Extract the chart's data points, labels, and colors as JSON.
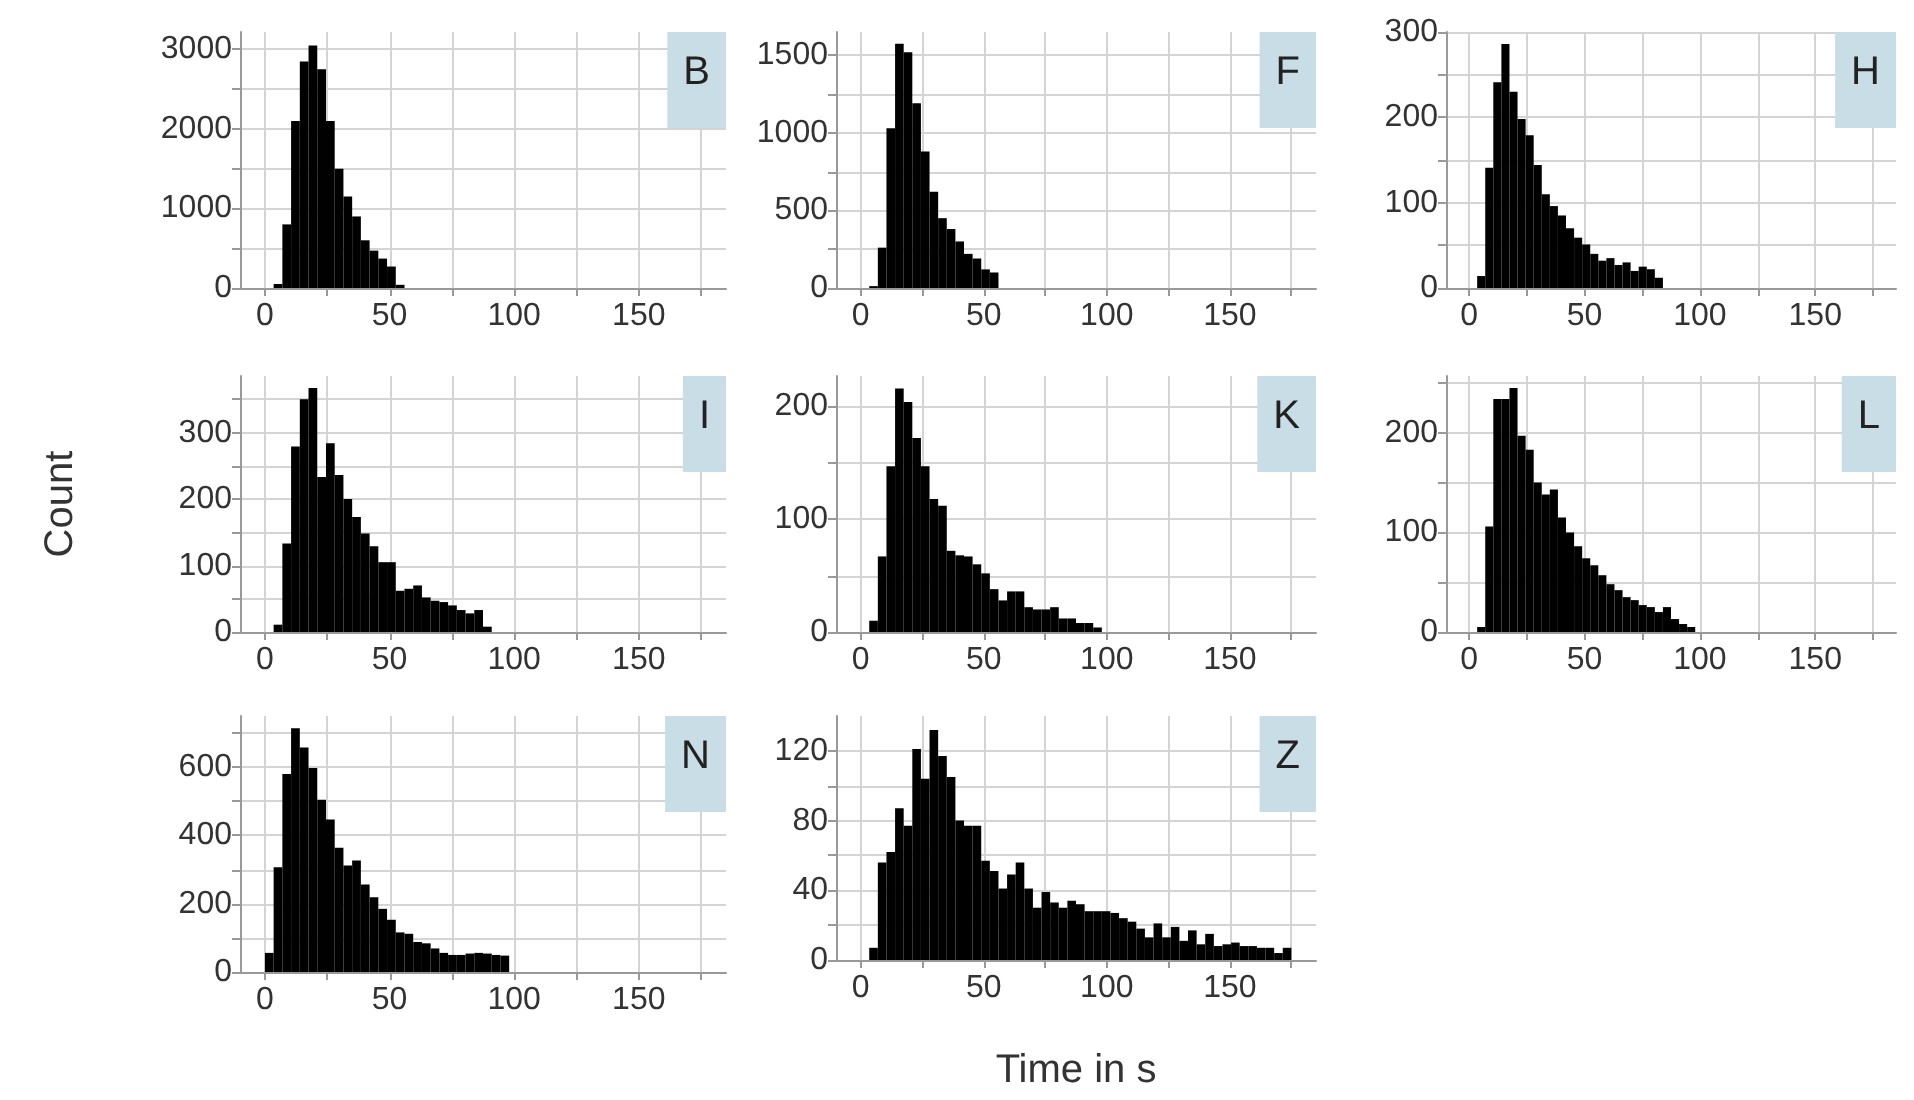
{
  "chart_data": [
    {
      "type": "histogram",
      "title": "B",
      "color": "#000000",
      "grid": true,
      "bins": [
        3.5,
        7,
        10.5,
        14,
        17.5,
        21,
        24.5,
        28,
        31.5,
        35,
        38.5,
        42,
        45.5,
        49,
        52.5,
        56
      ],
      "values": [
        50,
        800,
        2100,
        2850,
        3050,
        2750,
        2100,
        1500,
        1150,
        900,
        600,
        470,
        370,
        270,
        40
      ],
      "xlim": [
        -10,
        185
      ],
      "xticks": [
        0,
        {
          "value": 25,
          "label": null
        },
        50,
        {
          "value": 75,
          "label": null
        },
        100,
        {
          "value": 125,
          "label": null
        },
        150,
        {
          "value": 175,
          "label": null
        }
      ],
      "ylim": [
        0,
        3220
      ],
      "yticks": [
        0,
        {
          "value": 500,
          "label": null
        },
        1000,
        {
          "value": 1500,
          "label": null
        },
        2000,
        {
          "value": 2500,
          "label": null
        },
        3000
      ]
    },
    {
      "type": "histogram",
      "title": "F",
      "color": "#000000",
      "grid": true,
      "bins": [
        3.5,
        7,
        10.5,
        14,
        17.5,
        21,
        24.5,
        28,
        31.5,
        35,
        38.5,
        42,
        45.5,
        49,
        52.5,
        56
      ],
      "values": [
        12,
        260,
        1030,
        1575,
        1520,
        1190,
        880,
        620,
        450,
        380,
        300,
        220,
        190,
        120,
        100
      ],
      "xlim": [
        -10,
        185
      ],
      "xticks": [
        0,
        {
          "value": 25,
          "label": null
        },
        50,
        {
          "value": 75,
          "label": null
        },
        100,
        {
          "value": 125,
          "label": null
        },
        150,
        {
          "value": 175,
          "label": null
        }
      ],
      "ylim": [
        0,
        1650
      ],
      "yticks": [
        0,
        {
          "value": 250,
          "label": null
        },
        500,
        {
          "value": 750,
          "label": null
        },
        1000,
        {
          "value": 1250,
          "label": null
        },
        1500
      ]
    },
    {
      "type": "histogram",
      "title": "H",
      "color": "#000000",
      "grid": true,
      "bins": [
        3.5,
        7,
        10.5,
        14,
        17.5,
        21,
        24.5,
        28,
        31.5,
        35,
        38.5,
        42,
        45.5,
        49,
        52.5,
        56,
        59.5,
        63,
        66.5,
        70,
        73.5,
        77,
        80.5,
        84
      ],
      "values": [
        14,
        141,
        241,
        286,
        230,
        198,
        179,
        144,
        110,
        96,
        85,
        70,
        59,
        51,
        40,
        32,
        35,
        27,
        30,
        20,
        25,
        22,
        12
      ],
      "xlim": [
        -10,
        185
      ],
      "xticks": [
        0,
        {
          "value": 25,
          "label": null
        },
        50,
        {
          "value": 75,
          "label": null
        },
        100,
        {
          "value": 125,
          "label": null
        },
        150,
        {
          "value": 175,
          "label": null
        }
      ],
      "ylim": [
        0,
        300
      ],
      "yticks": [
        0,
        {
          "value": 50,
          "label": null
        },
        100,
        {
          "value": 150,
          "label": null
        },
        200,
        {
          "value": 250,
          "label": null
        },
        300
      ]
    },
    {
      "type": "histogram",
      "title": "I",
      "ylabel": "Count",
      "color": "#000000",
      "grid": true,
      "bins": [
        3.5,
        7,
        10.5,
        14,
        17.5,
        21,
        24.5,
        28,
        31.5,
        35,
        38.5,
        42,
        45.5,
        49,
        52.5,
        56,
        59.5,
        63,
        66.5,
        70,
        73.5,
        77,
        80.5,
        84,
        87.5,
        91
      ],
      "values": [
        11,
        133,
        279,
        350,
        367,
        233,
        284,
        236,
        200,
        173,
        148,
        129,
        105,
        105,
        62,
        65,
        70,
        52,
        47,
        45,
        40,
        33,
        28,
        33,
        8
      ],
      "xlim": [
        -10,
        185
      ],
      "xticks": [
        0,
        {
          "value": 25,
          "label": null
        },
        50,
        {
          "value": 75,
          "label": null
        },
        100,
        {
          "value": 125,
          "label": null
        },
        150,
        {
          "value": 175,
          "label": null
        }
      ],
      "ylim": [
        0,
        385
      ],
      "yticks": [
        0,
        {
          "value": 50,
          "label": null
        },
        100,
        {
          "value": 150,
          "label": null
        },
        200,
        {
          "value": 250,
          "label": null
        },
        300,
        {
          "value": 350,
          "label": null
        }
      ]
    },
    {
      "type": "histogram",
      "title": "K",
      "color": "#000000",
      "grid": true,
      "bins": [
        3.5,
        7,
        10.5,
        14,
        17.5,
        21,
        24.5,
        28,
        31.5,
        35,
        38.5,
        42,
        45.5,
        49,
        52.5,
        56,
        59.5,
        63,
        66.5,
        70,
        73.5,
        77,
        80.5,
        84,
        87.5,
        91,
        94.5,
        98
      ],
      "values": [
        10,
        67,
        147,
        216,
        204,
        172,
        147,
        118,
        112,
        72,
        68,
        67,
        60,
        52,
        38,
        28,
        36,
        36,
        22,
        20,
        20,
        22,
        12,
        12,
        8,
        8,
        4
      ],
      "xlim": [
        -10,
        185
      ],
      "xticks": [
        0,
        {
          "value": 25,
          "label": null
        },
        50,
        {
          "value": 75,
          "label": null
        },
        100,
        {
          "value": 125,
          "label": null
        },
        150,
        {
          "value": 175,
          "label": null
        }
      ],
      "ylim": [
        0,
        227
      ],
      "yticks": [
        0,
        {
          "value": 50,
          "label": null
        },
        100,
        {
          "value": 150,
          "label": null
        },
        200
      ]
    },
    {
      "type": "histogram",
      "title": "L",
      "color": "#000000",
      "grid": true,
      "bins": [
        3.5,
        7,
        10.5,
        14,
        17.5,
        21,
        24.5,
        28,
        31.5,
        35,
        38.5,
        42,
        45.5,
        49,
        52.5,
        56,
        59.5,
        63,
        66.5,
        70,
        73.5,
        77,
        80.5,
        84,
        87.5,
        91,
        94.5,
        98
      ],
      "values": [
        5,
        106,
        234,
        234,
        245,
        197,
        183,
        150,
        138,
        143,
        115,
        100,
        86,
        74,
        67,
        57,
        48,
        42,
        35,
        32,
        27,
        25,
        20,
        25,
        13,
        8,
        5
      ],
      "xlim": [
        -10,
        185
      ],
      "xticks": [
        0,
        {
          "value": 25,
          "label": null
        },
        50,
        {
          "value": 75,
          "label": null
        },
        100,
        {
          "value": 125,
          "label": null
        },
        150,
        {
          "value": 175,
          "label": null
        }
      ],
      "ylim": [
        0,
        257
      ],
      "yticks": [
        0,
        {
          "value": 50,
          "label": null
        },
        100,
        {
          "value": 150,
          "label": null
        },
        200,
        {
          "value": 250,
          "label": null
        }
      ]
    },
    {
      "type": "histogram",
      "title": "N",
      "color": "#000000",
      "grid": true,
      "bins": [
        0,
        3.5,
        7,
        10.5,
        14,
        17.5,
        21,
        24.5,
        28,
        31.5,
        35,
        38.5,
        42,
        45.5,
        49,
        52.5,
        56,
        59.5,
        63,
        66.5,
        70,
        73.5,
        77,
        80.5,
        84,
        87.5,
        91,
        94.5,
        98
      ],
      "values": [
        56,
        307,
        580,
        714,
        658,
        598,
        505,
        447,
        364,
        312,
        327,
        256,
        219,
        185,
        153,
        116,
        112,
        88,
        84,
        69,
        56,
        50,
        50,
        54,
        56,
        54,
        50,
        48
      ],
      "xlim": [
        -10,
        185
      ],
      "xticks": [
        0,
        {
          "value": 25,
          "label": null
        },
        50,
        {
          "value": 75,
          "label": null
        },
        100,
        {
          "value": 125,
          "label": null
        },
        150,
        {
          "value": 175,
          "label": null
        }
      ],
      "ylim": [
        0,
        750
      ],
      "yticks": [
        0,
        {
          "value": 100,
          "label": null
        },
        200,
        {
          "value": 300,
          "label": null
        },
        400,
        {
          "value": 500,
          "label": null
        },
        600,
        {
          "value": 700,
          "label": null
        }
      ]
    },
    {
      "type": "histogram",
      "title": "Z",
      "xlabel": "Time in s",
      "color": "#000000",
      "grid": true,
      "bins": [
        3.5,
        7,
        10.5,
        14,
        17.5,
        21,
        24.5,
        28,
        31.5,
        35,
        38.5,
        42,
        45.5,
        49,
        52.5,
        56,
        59.5,
        63,
        66.5,
        70,
        73.5,
        77,
        80.5,
        84,
        87.5,
        91,
        94.5,
        98,
        101.5,
        105,
        108.5,
        112,
        115.5,
        119,
        122.5,
        126,
        129.5,
        133,
        136.5,
        140,
        143.5,
        147,
        150.5,
        154,
        157.5,
        161,
        164.5,
        168,
        171.5,
        175
      ],
      "values": [
        7,
        56,
        62,
        87,
        77,
        121,
        104,
        132,
        117,
        105,
        80,
        77,
        77,
        57,
        51,
        41,
        49,
        56,
        41,
        30,
        39,
        33,
        30,
        34,
        32,
        28,
        28,
        28,
        27,
        24,
        22,
        18,
        13,
        21,
        13,
        19,
        11,
        17,
        9,
        15,
        8,
        9,
        10,
        8,
        8,
        7,
        7,
        4,
        7
      ],
      "xlim": [
        -10,
        185
      ],
      "xticks": [
        0,
        {
          "value": 25,
          "label": null
        },
        50,
        {
          "value": 75,
          "label": null
        },
        100,
        {
          "value": 125,
          "label": null
        },
        150,
        {
          "value": 175,
          "label": null
        }
      ],
      "ylim": [
        0,
        140
      ],
      "yticks": [
        0,
        {
          "value": 20,
          "label": null
        },
        40,
        {
          "value": 60,
          "label": null
        },
        80,
        {
          "value": 100,
          "label": null
        },
        120
      ]
    }
  ]
}
